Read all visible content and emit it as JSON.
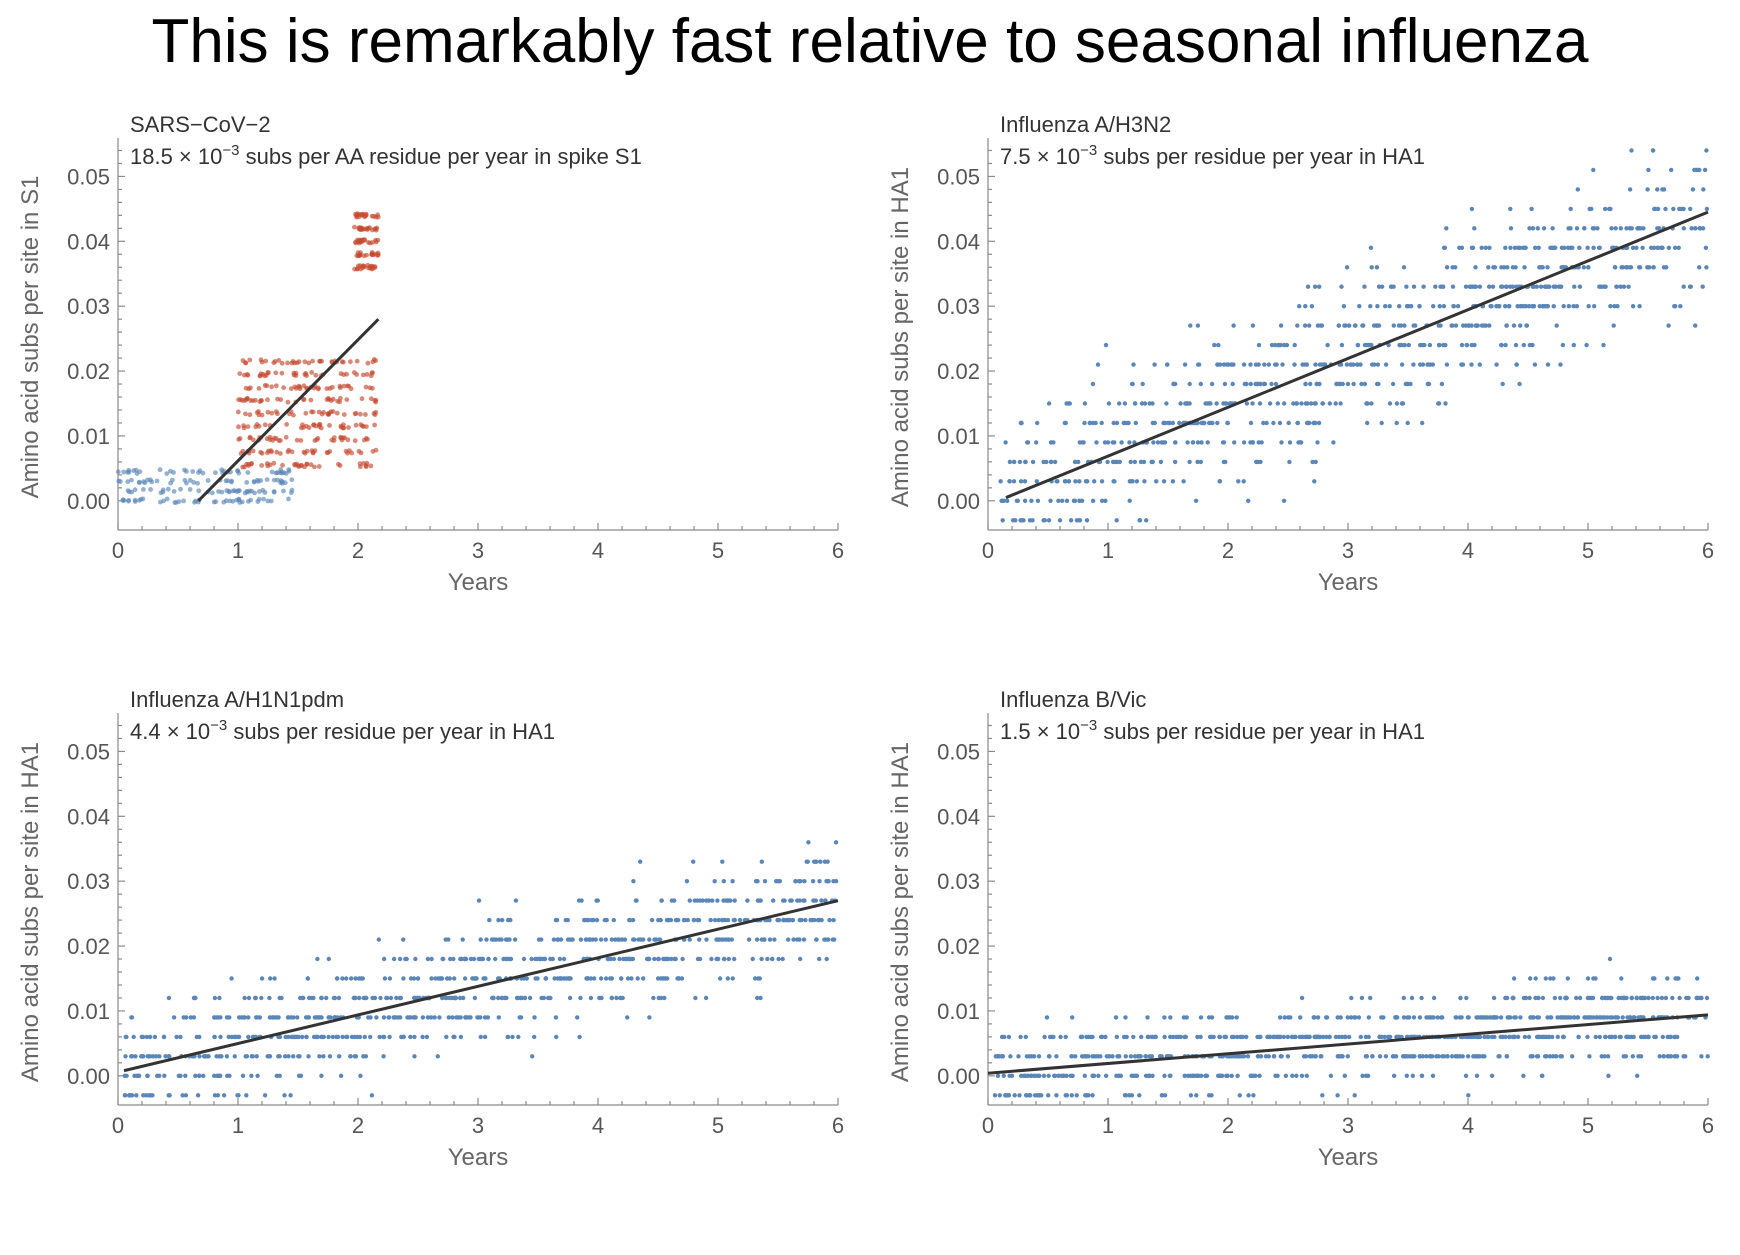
{
  "title": "This is remarkably fast relative to seasonal influenza",
  "colors": {
    "blue": "#5b87b8",
    "red": "#c64a30",
    "light_blue": "#9fbbd6",
    "light_red": "#dc8e7c",
    "fit": "#333333"
  },
  "chart_data": [
    {
      "type": "scatter",
      "label": "SARS−CoV−2",
      "annotation_coefficient": "18.5 × 10",
      "annotation_exponent": "−3",
      "annotation_rest": " subs per AA residue per year in spike S1",
      "xlabel": "Years",
      "ylabel": "Amino acid subs per site in S1",
      "xlim": [
        0,
        6
      ],
      "ylim": [
        -0.0045,
        0.055
      ],
      "xticks": [
        "0",
        "1",
        "2",
        "3",
        "4",
        "5",
        "6"
      ],
      "yticks": [
        "0.00",
        "0.01",
        "0.02",
        "0.03",
        "0.04",
        "0.05"
      ],
      "fit_line": {
        "x": [
          0.67,
          2.17
        ],
        "y": [
          0.0,
          0.028
        ]
      },
      "point_groups": [
        {
          "color": "blue",
          "x_range": [
            0.0,
            1.45
          ],
          "y_levels": [
            0.0,
            0.0015,
            0.003,
            0.0045
          ],
          "density": 40
        },
        {
          "color": "red",
          "x_range": [
            1.0,
            2.15
          ],
          "y_levels": [
            0.0055,
            0.0075,
            0.0095,
            0.0115,
            0.0135,
            0.0155,
            0.0175,
            0.0195,
            0.0215
          ],
          "density": 35
        },
        {
          "color": "red",
          "x_range": [
            1.97,
            2.17
          ],
          "y_levels": [
            0.036,
            0.038,
            0.04,
            0.042,
            0.044
          ],
          "density": 20
        }
      ]
    },
    {
      "type": "scatter",
      "label": "Influenza A/H3N2",
      "annotation_coefficient": "7.5 × 10",
      "annotation_exponent": "−3",
      "annotation_rest": " subs per residue per year in HA1",
      "xlabel": "Years",
      "ylabel": "Amino acid subs per site in HA1",
      "xlim": [
        0,
        6
      ],
      "ylim": [
        -0.0045,
        0.055
      ],
      "xticks": [
        "0",
        "1",
        "2",
        "3",
        "4",
        "5",
        "6"
      ],
      "yticks": [
        "0.00",
        "0.01",
        "0.02",
        "0.03",
        "0.04",
        "0.05"
      ],
      "fit_line": {
        "x": [
          0.15,
          6.0
        ],
        "y": [
          0.0005,
          0.0445
        ]
      },
      "point_groups": [
        {
          "color": "blue",
          "x_range": [
            0.1,
            6.0
          ],
          "band_along_fit": true,
          "spread": 0.009,
          "step": 0.003,
          "count": 900
        }
      ]
    },
    {
      "type": "scatter",
      "label": "Influenza A/H1N1pdm",
      "annotation_coefficient": "4.4 × 10",
      "annotation_exponent": "−3",
      "annotation_rest": " subs per residue per year in HA1",
      "xlabel": "Years",
      "ylabel": "Amino acid subs per site in HA1",
      "xlim": [
        0,
        6
      ],
      "ylim": [
        -0.0045,
        0.055
      ],
      "xticks": [
        "0",
        "1",
        "2",
        "3",
        "4",
        "5",
        "6"
      ],
      "yticks": [
        "0.00",
        "0.01",
        "0.02",
        "0.03",
        "0.04",
        "0.05"
      ],
      "fit_line": {
        "x": [
          0.05,
          6.0
        ],
        "y": [
          0.0008,
          0.027
        ]
      },
      "point_groups": [
        {
          "color": "blue",
          "x_range": [
            0.05,
            6.0
          ],
          "band_along_fit": true,
          "spread": 0.007,
          "step": 0.003,
          "count": 900
        }
      ]
    },
    {
      "type": "scatter",
      "label": "Influenza B/Vic",
      "annotation_coefficient": "1.5 × 10",
      "annotation_exponent": "−3",
      "annotation_rest": " subs per residue per year in HA1",
      "xlabel": "Years",
      "ylabel": "Amino acid subs per site in HA1",
      "xlim": [
        0,
        6
      ],
      "ylim": [
        -0.0045,
        0.055
      ],
      "xticks": [
        "0",
        "1",
        "2",
        "3",
        "4",
        "5",
        "6"
      ],
      "yticks": [
        "0.00",
        "0.01",
        "0.02",
        "0.03",
        "0.04",
        "0.05"
      ],
      "fit_line": {
        "x": [
          0.0,
          6.0
        ],
        "y": [
          0.0004,
          0.0094
        ]
      },
      "point_groups": [
        {
          "color": "blue",
          "x_range": [
            0.05,
            6.0
          ],
          "band_along_fit": true,
          "spread": 0.005,
          "step": 0.003,
          "count": 850
        }
      ]
    }
  ]
}
